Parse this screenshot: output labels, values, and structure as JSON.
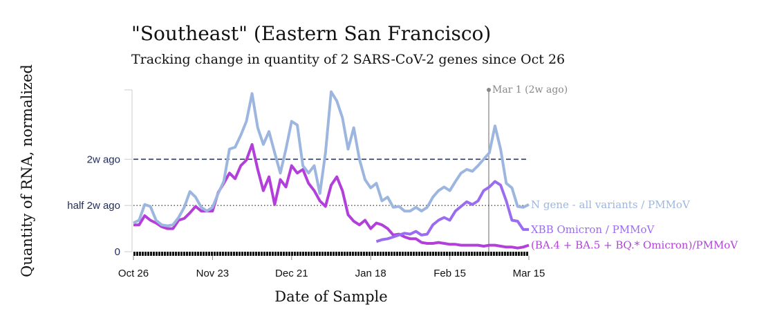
{
  "chart_data": {
    "type": "line",
    "title": "\"Southeast\" (Eastern San Francisco)",
    "subtitle": "Tracking change in quantity of 2 SARS-CoV-2 genes since Oct 26",
    "x_label": "Date of Sample",
    "y_label": "Quantity of RNA, normalized",
    "annotation": "Mar 1 (2w ago)",
    "categories": [
      "Oct 26",
      null,
      null,
      null,
      null,
      null,
      null,
      null,
      null,
      null,
      null,
      null,
      null,
      null,
      "Nov 23",
      null,
      null,
      null,
      null,
      null,
      null,
      null,
      null,
      null,
      null,
      null,
      null,
      null,
      "Dec 21",
      null,
      null,
      null,
      null,
      null,
      null,
      null,
      null,
      null,
      null,
      null,
      null,
      null,
      "Jan 18",
      null,
      null,
      null,
      null,
      null,
      null,
      null,
      null,
      null,
      null,
      null,
      null,
      null,
      "Feb 15",
      null,
      null,
      null,
      null,
      null,
      null,
      null,
      null,
      null,
      null,
      null,
      null,
      null,
      "Mar 15"
    ],
    "ylim": [
      0,
      1.75
    ],
    "yticks": [
      0,
      {
        "value": 0.5,
        "label": "half 2w ago"
      },
      {
        "value": 1,
        "label": "2w ago"
      }
    ],
    "grid_styles": [
      null,
      "dotted",
      "dashed"
    ],
    "series": [
      {
        "name": "N gene - all variants / PMMoV",
        "color": "#9db6e0",
        "values": [
          0.31,
          0.34,
          0.51,
          0.49,
          0.34,
          0.29,
          0.28,
          0.29,
          0.37,
          0.48,
          0.65,
          0.59,
          0.48,
          0.44,
          0.48,
          0.63,
          0.76,
          1.11,
          1.13,
          1.26,
          1.41,
          1.71,
          1.34,
          1.16,
          1.3,
          1.07,
          0.85,
          1.11,
          1.41,
          1.37,
          0.93,
          0.85,
          0.93,
          0.63,
          1.07,
          1.73,
          1.63,
          1.45,
          1.11,
          1.34,
          1.0,
          0.78,
          0.69,
          0.74,
          0.55,
          0.59,
          0.48,
          0.49,
          0.44,
          0.44,
          0.48,
          0.44,
          0.48,
          0.59,
          0.66,
          0.7,
          0.66,
          0.76,
          0.85,
          0.89,
          0.87,
          0.93,
          1.0,
          1.07,
          1.36,
          1.11,
          0.74,
          0.69,
          0.49,
          0.48,
          0.51
        ]
      },
      {
        "name": "XBB Omicron / PMMoV",
        "color": "#9a6cf0",
        "values": [
          null,
          null,
          null,
          null,
          null,
          null,
          null,
          null,
          null,
          null,
          null,
          null,
          null,
          null,
          null,
          null,
          null,
          null,
          null,
          null,
          null,
          null,
          null,
          null,
          null,
          null,
          null,
          null,
          null,
          null,
          null,
          null,
          null,
          null,
          null,
          null,
          null,
          null,
          null,
          null,
          null,
          null,
          null,
          0.11,
          0.13,
          0.14,
          0.16,
          0.18,
          0.2,
          0.19,
          0.22,
          0.18,
          0.19,
          0.29,
          0.34,
          0.37,
          0.34,
          0.44,
          0.49,
          0.54,
          0.51,
          0.55,
          0.66,
          0.7,
          0.76,
          0.72,
          0.55,
          0.34,
          0.33,
          0.24,
          0.24
        ]
      },
      {
        "name": "(BA.4 + BA.5 + BQ.* Omicron)/PMMoV",
        "color": "#b23fd9",
        "values": [
          0.29,
          0.29,
          0.39,
          0.34,
          0.31,
          0.27,
          0.25,
          0.25,
          0.34,
          0.36,
          0.42,
          0.49,
          0.44,
          0.44,
          0.44,
          0.64,
          0.74,
          0.85,
          0.79,
          0.93,
          0.99,
          1.16,
          0.89,
          0.66,
          0.81,
          0.51,
          0.78,
          0.7,
          0.93,
          0.85,
          0.89,
          0.74,
          0.66,
          0.55,
          0.49,
          0.72,
          0.81,
          0.66,
          0.4,
          0.33,
          0.29,
          0.34,
          0.25,
          0.31,
          0.29,
          0.25,
          0.18,
          0.19,
          0.16,
          0.14,
          0.14,
          0.1,
          0.09,
          0.09,
          0.1,
          0.09,
          0.08,
          0.08,
          0.07,
          0.07,
          0.07,
          0.07,
          0.06,
          0.07,
          0.07,
          0.06,
          0.05,
          0.05,
          0.04,
          0.05,
          0.07
        ]
      }
    ]
  }
}
